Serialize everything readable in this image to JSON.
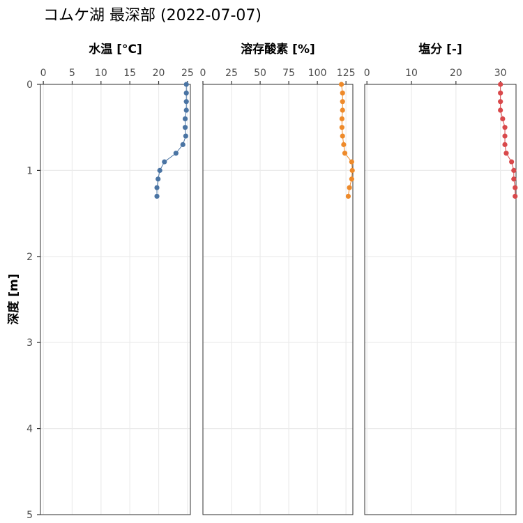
{
  "title": "コムケ湖 最深部 (2022-07-07)",
  "chart_data": {
    "type": "scatter",
    "ylabel": "深度 [m]",
    "shared_y": {
      "ylim": [
        0,
        5
      ],
      "ticks": [
        0,
        1,
        2,
        3,
        4,
        5
      ],
      "reversed": true
    },
    "grid": true,
    "panels": [
      {
        "title": "水温 [°C]",
        "xlim": [
          -0.5,
          25.5
        ],
        "xticks": [
          0,
          5,
          10,
          15,
          20,
          25
        ],
        "color": "#4a74a3",
        "series": {
          "depth": [
            0,
            0.1,
            0.2,
            0.3,
            0.4,
            0.5,
            0.6,
            0.7,
            0.8,
            0.9,
            1.0,
            1.1,
            1.2,
            1.3
          ],
          "value": [
            24.8,
            24.8,
            24.8,
            24.8,
            24.6,
            24.6,
            24.7,
            24.2,
            23.0,
            21.0,
            20.2,
            19.9,
            19.7,
            19.7
          ]
        }
      },
      {
        "title": "溶存酸素 [%]",
        "xlim": [
          0,
          131
        ],
        "xticks": [
          0,
          25,
          50,
          75,
          100,
          125
        ],
        "color": "#ee8a2a",
        "series": {
          "depth": [
            0,
            0.1,
            0.2,
            0.3,
            0.4,
            0.5,
            0.6,
            0.7,
            0.8,
            0.9,
            1.0,
            1.1,
            1.2,
            1.3
          ],
          "value": [
            121.0,
            122.0,
            122.0,
            122.0,
            121.5,
            121.5,
            122.0,
            123.0,
            124.0,
            130.0,
            130.5,
            130.0,
            128.0,
            127.0
          ]
        }
      },
      {
        "title": "塩分 [-]",
        "xlim": [
          -0.5,
          33.5
        ],
        "xticks": [
          0,
          10,
          20,
          30
        ],
        "color": "#d9494b",
        "series": {
          "depth": [
            0,
            0.1,
            0.2,
            0.3,
            0.4,
            0.5,
            0.6,
            0.7,
            0.8,
            0.9,
            1.0,
            1.1,
            1.2,
            1.3
          ],
          "value": [
            30.0,
            30.0,
            30.0,
            30.0,
            30.5,
            31.0,
            31.0,
            31.0,
            31.3,
            32.5,
            33.0,
            33.0,
            33.3,
            33.3
          ]
        }
      }
    ]
  }
}
